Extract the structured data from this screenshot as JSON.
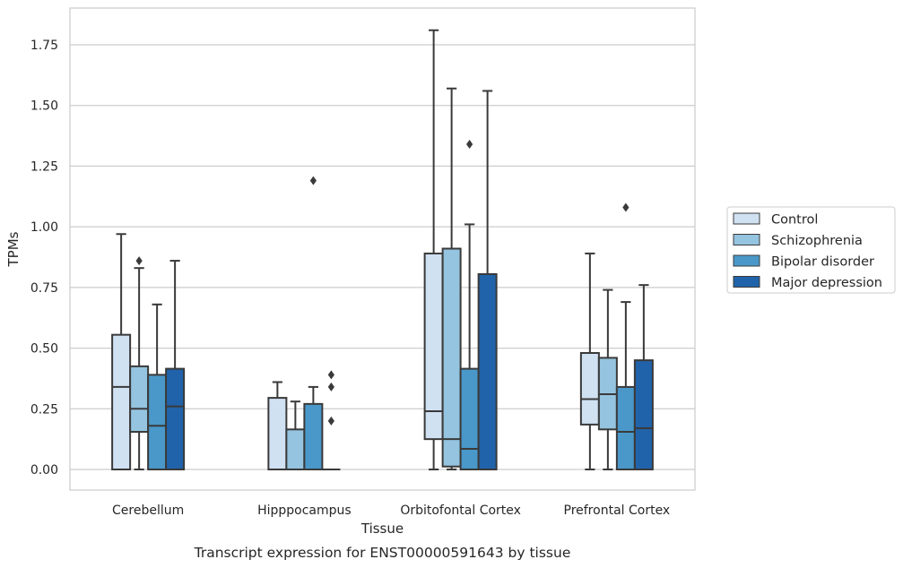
{
  "caption": "Transcript expression for ENST00000591643 by tissue",
  "chart_data": {
    "type": "boxplot",
    "xlabel": "Tissue",
    "ylabel": "TPMs",
    "ylim": [
      -0.09,
      1.9
    ],
    "yticks": [
      0.0,
      0.25,
      0.5,
      0.75,
      1.0,
      1.25,
      1.5,
      1.75
    ],
    "ytick_labels": [
      "0.00",
      "0.25",
      "0.50",
      "0.75",
      "1.00",
      "1.25",
      "1.50",
      "1.75"
    ],
    "grid": true,
    "legend_position": "right",
    "categories": [
      "Cerebellum",
      "Hipppocampus",
      "Orbitofontal Cortex",
      "Prefrontal Cortex"
    ],
    "series": [
      {
        "name": "Control",
        "color": "#d0e1f2",
        "boxes": [
          {
            "min": 0.0,
            "q1": 0.0,
            "median": 0.34,
            "q3": 0.555,
            "max": 0.97,
            "outliers": []
          },
          {
            "min": 0.0,
            "q1": 0.0,
            "median": 0.0,
            "q3": 0.295,
            "max": 0.36,
            "outliers": []
          },
          {
            "min": 0.0,
            "q1": 0.125,
            "median": 0.24,
            "q3": 0.89,
            "max": 1.81,
            "outliers": []
          },
          {
            "min": 0.0,
            "q1": 0.185,
            "median": 0.29,
            "q3": 0.48,
            "max": 0.89,
            "outliers": []
          }
        ]
      },
      {
        "name": "Schizophrenia",
        "color": "#94c4df",
        "boxes": [
          {
            "min": 0.0,
            "q1": 0.155,
            "median": 0.25,
            "q3": 0.425,
            "max": 0.83,
            "outliers": [
              0.86
            ]
          },
          {
            "min": 0.0,
            "q1": 0.0,
            "median": 0.0,
            "q3": 0.165,
            "max": 0.28,
            "outliers": []
          },
          {
            "min": 0.0,
            "q1": 0.012,
            "median": 0.125,
            "q3": 0.91,
            "max": 1.57,
            "outliers": []
          },
          {
            "min": 0.0,
            "q1": 0.165,
            "median": 0.31,
            "q3": 0.46,
            "max": 0.74,
            "outliers": []
          }
        ]
      },
      {
        "name": "Bipolar disorder",
        "color": "#4a98c9",
        "boxes": [
          {
            "min": 0.0,
            "q1": 0.0,
            "median": 0.18,
            "q3": 0.39,
            "max": 0.68,
            "outliers": []
          },
          {
            "min": 0.0,
            "q1": 0.0,
            "median": 0.0,
            "q3": 0.27,
            "max": 0.34,
            "outliers": [
              1.19
            ]
          },
          {
            "min": 0.0,
            "q1": 0.0,
            "median": 0.085,
            "q3": 0.415,
            "max": 1.01,
            "outliers": [
              1.34
            ]
          },
          {
            "min": 0.0,
            "q1": 0.0,
            "median": 0.155,
            "q3": 0.34,
            "max": 0.69,
            "outliers": [
              1.08
            ]
          }
        ]
      },
      {
        "name": "Major depression",
        "color": "#2163aa",
        "boxes": [
          {
            "min": 0.0,
            "q1": 0.0,
            "median": 0.26,
            "q3": 0.415,
            "max": 0.86,
            "outliers": []
          },
          {
            "min": 0.0,
            "q1": 0.0,
            "median": 0.0,
            "q3": 0.0,
            "max": 0.0,
            "outliers": [
              0.39,
              0.34,
              0.2
            ]
          },
          {
            "min": 0.0,
            "q1": 0.0,
            "median": 0.0,
            "q3": 0.805,
            "max": 1.56,
            "outliers": []
          },
          {
            "min": 0.0,
            "q1": 0.0,
            "median": 0.17,
            "q3": 0.45,
            "max": 0.76,
            "outliers": []
          }
        ]
      }
    ]
  }
}
